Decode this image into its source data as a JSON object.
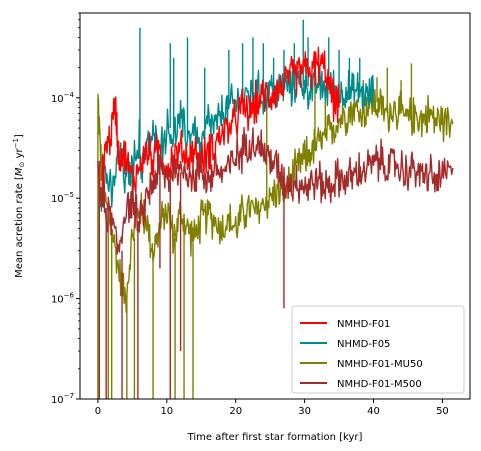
{
  "chart_data": {
    "type": "line",
    "xlabel": "Time after first star formation [kyr]",
    "ylabel_prefix": "Mean acretion rate [",
    "ylabel_unit_m": "M",
    "ylabel_unit_sub": "⊙",
    "ylabel_unit_yr": " yr",
    "ylabel_unit_sup": "−1",
    "ylabel_suffix": "]",
    "xlim": [
      -2.6,
      54.0
    ],
    "ylim": [
      1e-07,
      0.0007
    ],
    "yscale": "log",
    "grid": false,
    "legend_position": "lower right",
    "x_ticks": [
      0,
      10,
      20,
      30,
      40,
      50
    ],
    "x_tick_labels": [
      "0",
      "10",
      "20",
      "30",
      "40",
      "50"
    ],
    "y_ticks": [
      1e-07,
      1e-06,
      1e-05,
      0.0001
    ],
    "y_tick_base": "10",
    "y_tick_exponents": [
      "−7",
      "−6",
      "−5",
      "−4"
    ],
    "series": [
      {
        "name": "NMHD-F01",
        "color": "#ff0000",
        "points": [
          [
            0.5,
            1.2e-05
          ],
          [
            1.0,
            3e-05
          ],
          [
            1.8,
            4e-05
          ],
          [
            2.5,
            9e-05
          ],
          [
            3.0,
            3e-05
          ],
          [
            4.0,
            2.5e-05
          ],
          [
            5.0,
            1.5e-05
          ],
          [
            6.0,
            2e-05
          ],
          [
            7.0,
            3e-05
          ],
          [
            8.0,
            2.5e-05
          ],
          [
            9.0,
            3e-05
          ],
          [
            10.0,
            2e-05
          ],
          [
            11.0,
            2.5e-05
          ],
          [
            12.0,
            3e-05
          ],
          [
            13.0,
            2.5e-05
          ],
          [
            14.0,
            3e-05
          ],
          [
            15.0,
            2.2e-05
          ],
          [
            16.0,
            3e-05
          ],
          [
            17.0,
            3.5e-05
          ],
          [
            18.0,
            4.5e-05
          ],
          [
            19.0,
            5e-05
          ],
          [
            20.0,
            6e-05
          ],
          [
            21.0,
            8e-05
          ],
          [
            22.0,
            7e-05
          ],
          [
            23.0,
            9e-05
          ],
          [
            24.0,
            0.0001
          ],
          [
            25.0,
            0.00011
          ],
          [
            26.0,
            0.00012
          ],
          [
            27.0,
            0.00014
          ],
          [
            28.0,
            0.00016
          ],
          [
            29.0,
            0.00018
          ],
          [
            30.0,
            0.0002
          ],
          [
            31.0,
            0.00018
          ],
          [
            32.0,
            0.00022
          ],
          [
            33.0,
            0.00019
          ],
          [
            34.0,
            0.0001
          ],
          [
            35.0,
            8e-05
          ]
        ]
      },
      {
        "name": "NHMD-F05",
        "color": "#008b8b",
        "points": [
          [
            0.3,
            1e-05
          ],
          [
            1.0,
            2e-05
          ],
          [
            2.0,
            1e-05
          ],
          [
            3.0,
            3e-05
          ],
          [
            4.0,
            1.5e-05
          ],
          [
            5.0,
            2e-05
          ],
          [
            6.0,
            4e-05
          ],
          [
            6.2,
            2e-05
          ],
          [
            7.0,
            3e-05
          ],
          [
            8.0,
            4e-05
          ],
          [
            9.0,
            3e-05
          ],
          [
            10.0,
            5e-05
          ],
          [
            11.0,
            4e-05
          ],
          [
            12.0,
            6e-05
          ],
          [
            13.0,
            4e-05
          ],
          [
            14.0,
            5e-05
          ],
          [
            15.0,
            3e-05
          ],
          [
            16.0,
            6e-05
          ],
          [
            17.0,
            5e-05
          ],
          [
            18.0,
            7e-05
          ],
          [
            19.0,
            8e-05
          ],
          [
            20.0,
            9e-05
          ],
          [
            21.0,
            0.0001
          ],
          [
            22.0,
            0.00011
          ],
          [
            23.0,
            0.00012
          ],
          [
            24.0,
            0.0001
          ],
          [
            25.0,
            0.00013
          ],
          [
            26.0,
            0.00011
          ],
          [
            27.0,
            0.00014
          ],
          [
            28.0,
            0.00012
          ],
          [
            29.0,
            0.00015
          ],
          [
            30.0,
            0.00013
          ],
          [
            31.0,
            0.00012
          ],
          [
            32.0,
            0.00014
          ],
          [
            33.0,
            0.00012
          ],
          [
            34.0,
            0.00013
          ],
          [
            35.0,
            0.00011
          ],
          [
            36.0,
            0.00012
          ],
          [
            37.0,
            0.00011
          ],
          [
            38.0,
            0.00012
          ],
          [
            39.0,
            0.0001
          ],
          [
            40.0,
            0.00011
          ]
        ],
        "spikes": [
          [
            6.1,
            0.0005
          ],
          [
            10.5,
            0.00035
          ],
          [
            11.0,
            0.00025
          ],
          [
            13.0,
            0.0004
          ],
          [
            15.5,
            0.0002
          ],
          [
            19.0,
            0.0003
          ],
          [
            21.0,
            0.00035
          ],
          [
            22.5,
            0.0004
          ],
          [
            24.0,
            0.00035
          ],
          [
            25.5,
            0.00025
          ],
          [
            27.0,
            0.0003
          ],
          [
            28.5,
            0.00035
          ],
          [
            29.8,
            0.0006
          ],
          [
            30.5,
            0.0004
          ],
          [
            32.0,
            0.0003
          ],
          [
            33.5,
            0.0004
          ],
          [
            35.0,
            0.0003
          ],
          [
            36.5,
            0.00025
          ],
          [
            38.0,
            0.00025
          ]
        ]
      },
      {
        "name": "NMHD-F01-MU50",
        "color": "#808000",
        "points": [
          [
            0.0,
            0.0001
          ],
          [
            0.5,
            2e-05
          ],
          [
            1.0,
            1e-05
          ],
          [
            2.0,
            5e-06
          ],
          [
            3.0,
            2e-06
          ],
          [
            4.0,
            1e-06
          ],
          [
            5.0,
            4e-06
          ],
          [
            6.0,
            8e-06
          ],
          [
            7.0,
            6e-06
          ],
          [
            8.0,
            3e-06
          ],
          [
            9.0,
            5e-06
          ],
          [
            10.0,
            8e-06
          ],
          [
            11.0,
            4e-06
          ],
          [
            12.0,
            7e-06
          ],
          [
            13.0,
            5e-06
          ],
          [
            14.0,
            4e-06
          ],
          [
            15.0,
            6e-06
          ],
          [
            16.0,
            7e-06
          ],
          [
            17.0,
            6e-06
          ],
          [
            18.0,
            5e-06
          ],
          [
            19.0,
            6e-06
          ],
          [
            20.0,
            5e-06
          ],
          [
            21.0,
            7e-06
          ],
          [
            22.0,
            8e-06
          ],
          [
            23.0,
            7e-06
          ],
          [
            24.0,
            9e-06
          ],
          [
            25.0,
            1e-05
          ],
          [
            26.0,
            1.2e-05
          ],
          [
            27.0,
            1.1e-05
          ],
          [
            28.0,
            1.5e-05
          ],
          [
            29.0,
            2e-05
          ],
          [
            30.0,
            2.5e-05
          ],
          [
            31.0,
            3e-05
          ],
          [
            32.0,
            3.5e-05
          ],
          [
            33.0,
            4e-05
          ],
          [
            34.0,
            5e-05
          ],
          [
            35.0,
            6e-05
          ],
          [
            36.0,
            7e-05
          ],
          [
            37.0,
            8e-05
          ],
          [
            38.0,
            7e-05
          ],
          [
            39.0,
            8e-05
          ],
          [
            40.0,
            9e-05
          ],
          [
            41.0,
            8e-05
          ],
          [
            42.0,
            7e-05
          ],
          [
            43.0,
            8e-05
          ],
          [
            44.0,
            7e-05
          ],
          [
            45.0,
            6e-05
          ],
          [
            46.0,
            7e-05
          ],
          [
            47.0,
            6e-05
          ],
          [
            48.0,
            7e-05
          ],
          [
            49.0,
            6e-05
          ],
          [
            50.0,
            6e-05
          ],
          [
            51.5,
            5.5e-05
          ]
        ],
        "spikes": [
          [
            0.0,
            1e-07
          ],
          [
            1.5,
            1e-07
          ],
          [
            2.0,
            1e-07
          ],
          [
            4.2,
            1e-07
          ],
          [
            5.3,
            1e-07
          ],
          [
            8.0,
            1e-07
          ],
          [
            11.2,
            1e-07
          ],
          [
            12.5,
            1e-07
          ],
          [
            13.8,
            1e-07
          ],
          [
            24.5,
            0.0001
          ],
          [
            31.5,
            0.00015
          ],
          [
            33.0,
            0.0001
          ],
          [
            35.5,
            0.00012
          ],
          [
            38.5,
            0.00015
          ],
          [
            40.5,
            0.00016
          ],
          [
            42.0,
            0.0002
          ],
          [
            44.0,
            0.00015
          ],
          [
            45.5,
            0.00022
          ]
        ]
      },
      {
        "name": "NMHD-F01-M500",
        "color": "#a52a2a",
        "points": [
          [
            0.0,
            2e-05
          ],
          [
            0.5,
            1e-05
          ],
          [
            1.0,
            8e-06
          ],
          [
            2.0,
            6e-06
          ],
          [
            3.0,
            3e-06
          ],
          [
            4.0,
            8e-06
          ],
          [
            5.0,
            1e-05
          ],
          [
            6.0,
            5e-06
          ],
          [
            7.0,
            1e-05
          ],
          [
            8.0,
            1.5e-05
          ],
          [
            9.0,
            2e-05
          ],
          [
            10.0,
            1.5e-05
          ],
          [
            11.0,
            2e-05
          ],
          [
            12.0,
            1.8e-05
          ],
          [
            13.0,
            2e-05
          ],
          [
            14.0,
            1.5e-05
          ],
          [
            15.0,
            2e-05
          ],
          [
            16.0,
            1.5e-05
          ],
          [
            17.0,
            2e-05
          ],
          [
            18.0,
            1.8e-05
          ],
          [
            19.0,
            2e-05
          ],
          [
            20.0,
            2.5e-05
          ],
          [
            21.0,
            3e-05
          ],
          [
            22.0,
            4e-05
          ],
          [
            23.0,
            3.5e-05
          ],
          [
            24.0,
            3e-05
          ],
          [
            25.0,
            2.5e-05
          ],
          [
            26.0,
            2e-05
          ],
          [
            27.0,
            1.5e-05
          ],
          [
            28.0,
            1.4e-05
          ],
          [
            29.0,
            1.5e-05
          ],
          [
            30.0,
            1.3e-05
          ],
          [
            31.0,
            1.4e-05
          ],
          [
            32.0,
            1.5e-05
          ],
          [
            33.0,
            1.3e-05
          ],
          [
            34.0,
            1.4e-05
          ],
          [
            35.0,
            1.6e-05
          ],
          [
            36.0,
            1.5e-05
          ],
          [
            37.0,
            1.7e-05
          ],
          [
            38.0,
            1.8e-05
          ],
          [
            39.0,
            2e-05
          ],
          [
            40.0,
            2.2e-05
          ],
          [
            41.0,
            2.4e-05
          ],
          [
            42.0,
            2e-05
          ],
          [
            43.0,
            2.2e-05
          ],
          [
            44.0,
            2e-05
          ],
          [
            45.0,
            1.8e-05
          ],
          [
            46.0,
            2e-05
          ],
          [
            47.0,
            1.6e-05
          ],
          [
            48.0,
            1.8e-05
          ],
          [
            49.0,
            1.5e-05
          ],
          [
            50.0,
            1.6e-05
          ],
          [
            51.5,
            2e-05
          ]
        ],
        "spikes": [
          [
            0.2,
            1e-07
          ],
          [
            1.2,
            1e-07
          ],
          [
            3.5,
            1e-07
          ],
          [
            5.8,
            1e-07
          ],
          [
            9.0,
            2e-06
          ],
          [
            10.5,
            1e-07
          ],
          [
            12.0,
            3e-07
          ],
          [
            27.0,
            8e-07
          ]
        ]
      }
    ]
  }
}
